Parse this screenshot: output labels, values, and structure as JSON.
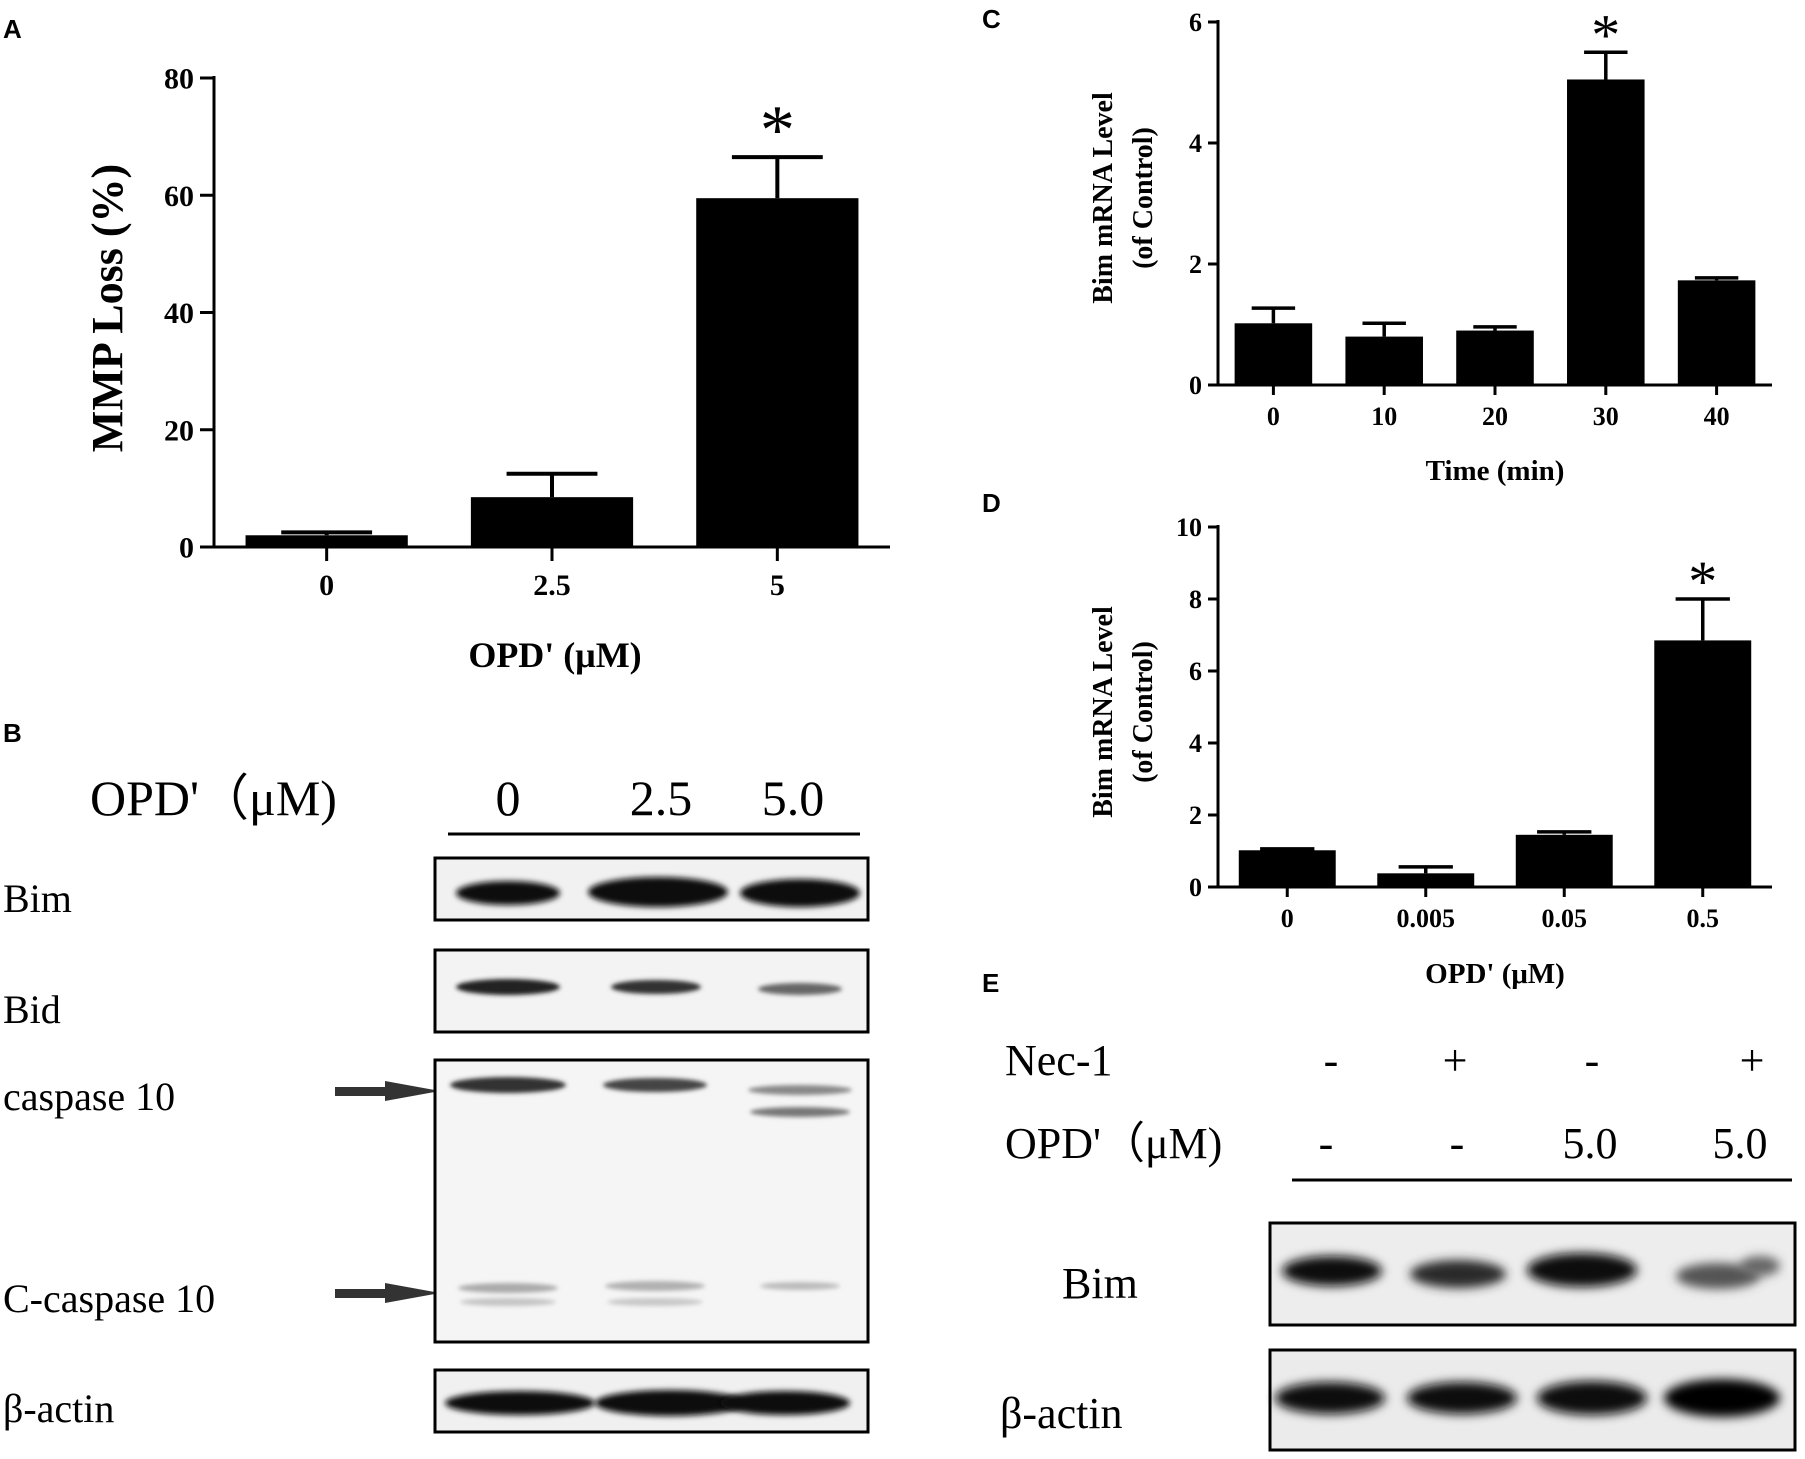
{
  "figure": {
    "panel_letters": [
      "A",
      "B",
      "C",
      "D",
      "E"
    ]
  },
  "chart_data": [
    {
      "panel": "A",
      "type": "bar",
      "categories": [
        "0",
        "2.5",
        "5"
      ],
      "values": [
        2,
        8.5,
        59.5
      ],
      "errors": [
        0.5,
        4,
        7
      ],
      "significance": [
        "",
        "",
        "*"
      ],
      "xlabel": "OPD' (μM)",
      "ylabel": "MMP Loss (%)",
      "ylim": [
        0,
        80
      ],
      "yticks": [
        "0",
        "20",
        "40",
        "60",
        "80"
      ],
      "bar_color": "#000000"
    },
    {
      "panel": "C",
      "type": "bar",
      "categories": [
        "0",
        "10",
        "20",
        "30",
        "40"
      ],
      "values": [
        1.02,
        0.8,
        0.9,
        5.05,
        1.73
      ],
      "errors": [
        0.25,
        0.22,
        0.06,
        0.45,
        0.04
      ],
      "significance": [
        "",
        "",
        "",
        "*",
        ""
      ],
      "xlabel": "Time (min)",
      "ylabel": [
        "Bim mRNA Level",
        "(of Control)"
      ],
      "ylim": [
        0,
        6
      ],
      "yticks": [
        "0",
        "2",
        "4",
        "6"
      ],
      "bar_color": "#000000"
    },
    {
      "panel": "D",
      "type": "bar",
      "categories": [
        "0",
        "0.005",
        "0.05",
        "0.5"
      ],
      "values": [
        1.02,
        0.38,
        1.45,
        6.85
      ],
      "errors": [
        0.04,
        0.18,
        0.08,
        1.15
      ],
      "significance": [
        "",
        "",
        "",
        "*"
      ],
      "xlabel": "OPD' (μM)",
      "ylabel": [
        "Bim mRNA Level",
        "(of Control)"
      ],
      "ylim": [
        0,
        10
      ],
      "yticks": [
        "0",
        "2",
        "4",
        "6",
        "8",
        "10"
      ],
      "bar_color": "#000000"
    }
  ],
  "blotB": {
    "header_label": "OPD'（μM)",
    "lane_labels": [
      "0",
      "2.5",
      "5.0"
    ],
    "row_labels": [
      "Bim",
      "Bid",
      "caspase 10",
      "C-caspase 10",
      "β-actin"
    ]
  },
  "blotE": {
    "nec_label": "Nec-1",
    "opd_label": "OPD'（μM)",
    "nec_values": [
      "-",
      "+",
      "-",
      "+"
    ],
    "opd_values": [
      "-",
      "-",
      "5.0",
      "5.0"
    ],
    "row_labels": [
      "Bim",
      "β-actin"
    ]
  }
}
